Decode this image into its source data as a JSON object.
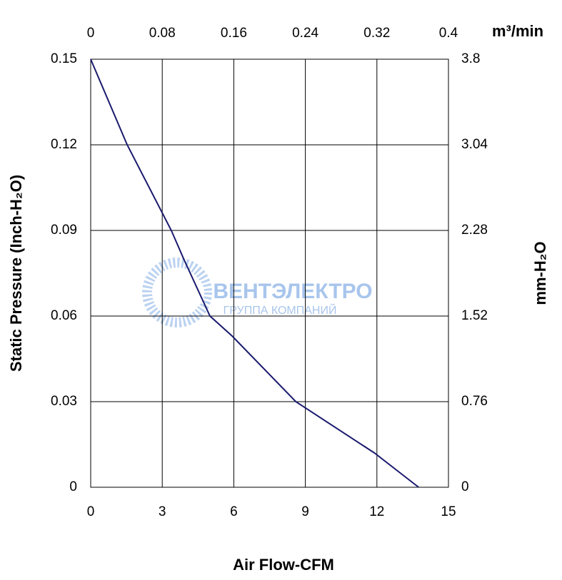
{
  "chart_data": {
    "type": "line",
    "x_label": "Air Flow-CFM",
    "y_label": "Static Pressure (Inch-H₂O)",
    "x2_label": "m³/min",
    "y2_label": "mm-H₂O",
    "watermark": {
      "title": "ВЕНТЭЛЕКТРО",
      "subtitle": "ГРУППА КОМПАНИЙ"
    },
    "x": [
      0,
      1.53,
      3.38,
      3.9,
      5.0,
      5.93,
      8.6,
      11.9,
      13.75
    ],
    "series": [
      {
        "color": "#1a1a6e",
        "values": [
          0.15,
          0.12,
          0.09,
          0.08,
          0.06,
          0.053,
          0.03,
          0.012,
          0
        ]
      }
    ],
    "xlim": [
      0,
      15
    ],
    "xticks": [
      0,
      3,
      6,
      9,
      12,
      15
    ],
    "ylim": [
      0,
      0.15
    ],
    "yticks": [
      0,
      0.03,
      0.06,
      0.09,
      0.12,
      0.15
    ],
    "x2lim": [
      0,
      0.4
    ],
    "x2ticks": [
      0,
      0.08,
      0.16,
      0.24,
      0.32,
      0.4
    ],
    "y2lim": [
      0,
      3.8
    ],
    "y2ticks": [
      0,
      0.76,
      1.52,
      2.28,
      3.04,
      3.8
    ],
    "grid": true
  }
}
